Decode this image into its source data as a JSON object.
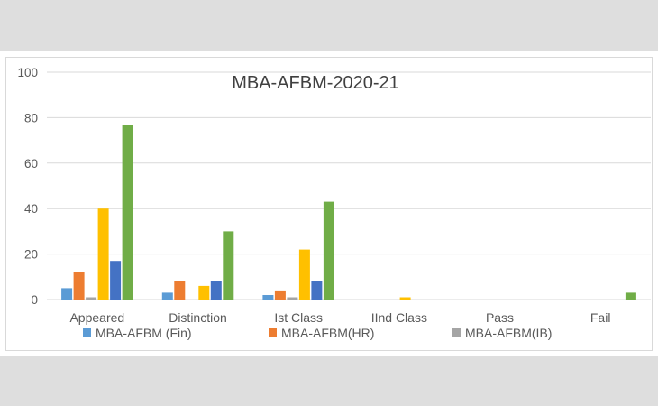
{
  "chart_data": {
    "type": "bar",
    "title": "MBA-AFBM-2020-21",
    "xlabel": "",
    "ylabel": "",
    "ylim": [
      0,
      100
    ],
    "yticks": [
      0,
      20,
      40,
      60,
      80,
      100
    ],
    "grid": true,
    "legend_position": "bottom",
    "categories": [
      "Appeared",
      "Distinction",
      "Ist Class",
      "IInd Class",
      "Pass",
      "Fail"
    ],
    "series": [
      {
        "name": "MBA-AFBM (Fin)",
        "color": "#5b9bd5",
        "values": [
          5,
          3,
          2,
          0,
          0,
          0
        ]
      },
      {
        "name": "MBA-AFBM(HR)",
        "color": "#ed7d31",
        "values": [
          12,
          8,
          4,
          0,
          0,
          0
        ]
      },
      {
        "name": "MBA-AFBM(IB)",
        "color": "#a5a5a5",
        "values": [
          1,
          0,
          1,
          0,
          0,
          0
        ]
      },
      {
        "name": "",
        "color": "#ffc000",
        "values": [
          40,
          6,
          22,
          1,
          0,
          0
        ]
      },
      {
        "name": "",
        "color": "#4472c4",
        "values": [
          17,
          8,
          8,
          0,
          0,
          0
        ]
      },
      {
        "name": "",
        "color": "#70ad47",
        "values": [
          77,
          30,
          43,
          0,
          0,
          3
        ]
      }
    ]
  }
}
